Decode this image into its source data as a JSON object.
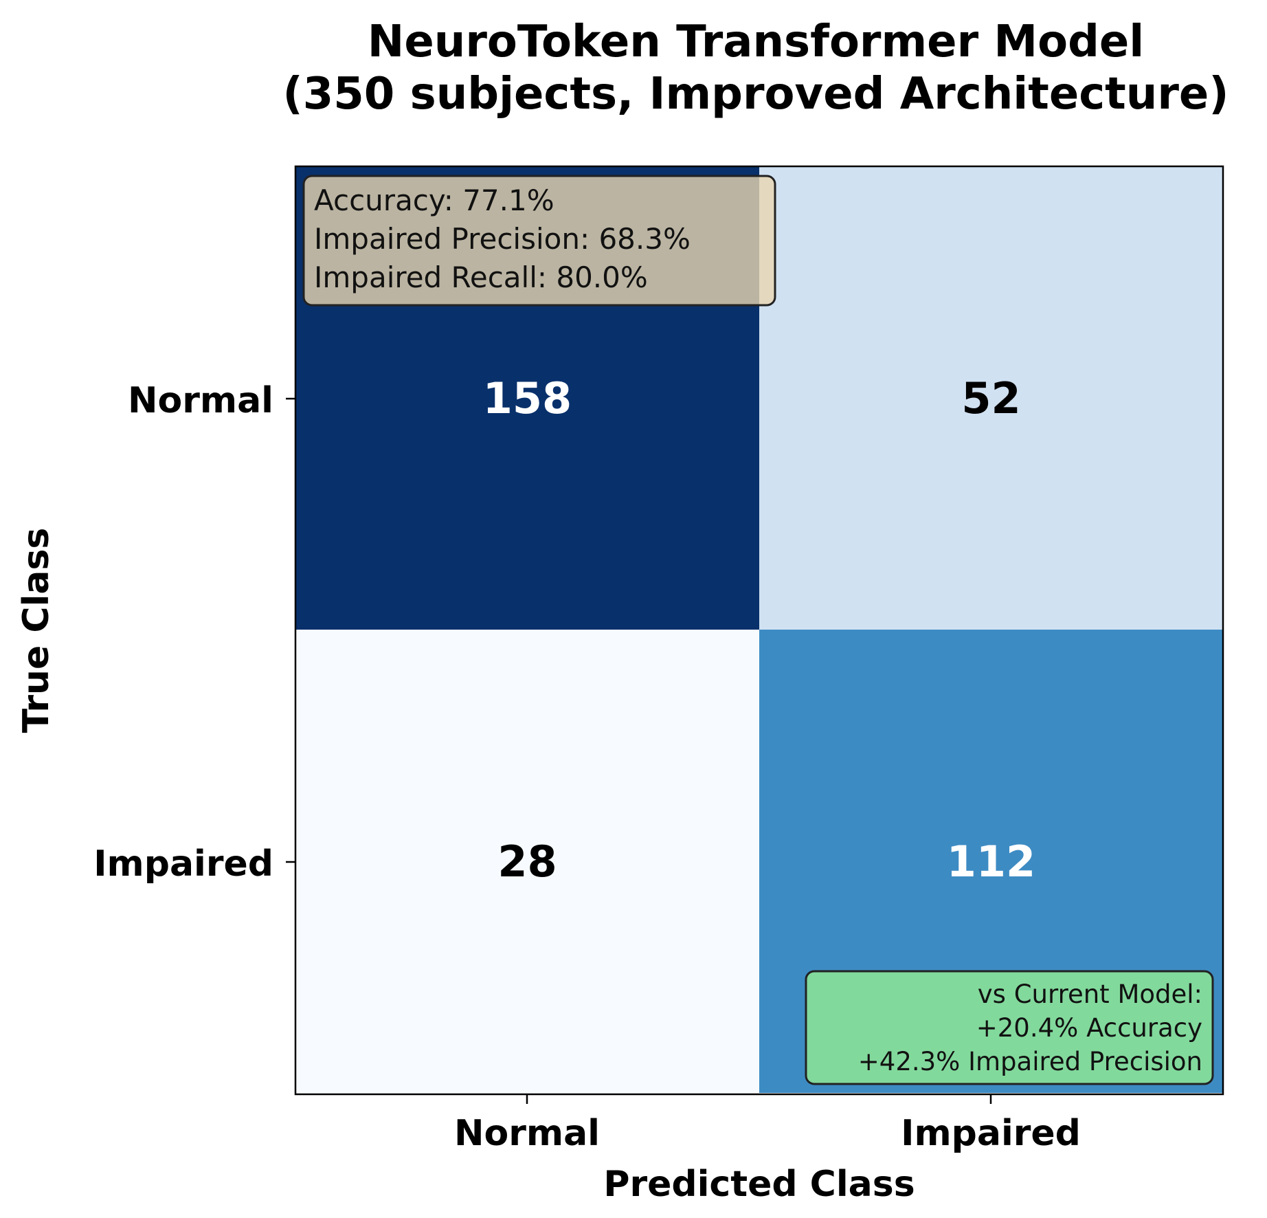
{
  "chart_data": {
    "type": "heatmap",
    "title_lines": [
      "NeuroToken Transformer Model",
      "(350 subjects, Improved Architecture)"
    ],
    "xlabel": "Predicted Class",
    "ylabel": "True Class",
    "x_categories": [
      "Normal",
      "Impaired"
    ],
    "y_categories": [
      "Normal",
      "Impaired"
    ],
    "matrix": [
      [
        158,
        52
      ],
      [
        28,
        112
      ]
    ],
    "colormap": "Blues",
    "cell_colors": [
      [
        "#08306b",
        "#d0e1f2"
      ],
      [
        "#f7fbff",
        "#3d8bc3"
      ]
    ],
    "value_text_colors": [
      [
        "#ffffff",
        "#000000"
      ],
      [
        "#000000",
        "#ffffff"
      ]
    ],
    "metrics_box": {
      "lines": [
        "Accuracy: 77.1%",
        "Impaired Precision: 68.3%",
        "Impaired Recall: 80.0%"
      ],
      "background": "#e8d6b0",
      "position": "top-left"
    },
    "comparison_box": {
      "lines": [
        "vs Current Model:",
        "+20.4% Accuracy",
        "+42.3% Impaired Precision"
      ],
      "background": "#82d99c",
      "position": "bottom-right"
    }
  }
}
